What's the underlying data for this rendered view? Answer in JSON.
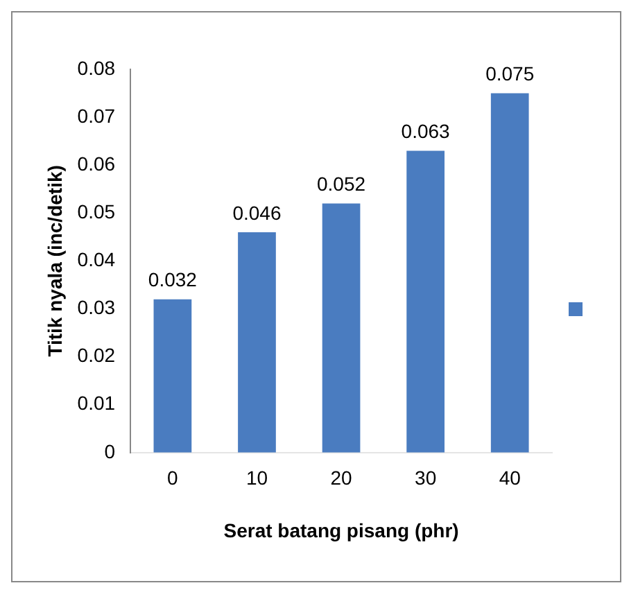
{
  "chart_data": {
    "type": "bar",
    "xlabel": "Serat batang pisang (phr)",
    "ylabel": "Titik nyala (inc/detik)",
    "categories": [
      "0",
      "10",
      "20",
      "30",
      "40"
    ],
    "series": [
      {
        "color": "#4a7cc0",
        "values": [
          0.032,
          0.046,
          0.052,
          0.063,
          0.075
        ]
      }
    ],
    "ylim": [
      0,
      0.08
    ],
    "yticks": [
      0,
      0.01,
      0.02,
      0.03,
      0.04,
      0.05,
      0.06,
      0.07,
      0.08
    ],
    "data_labels": true,
    "grid": false
  }
}
